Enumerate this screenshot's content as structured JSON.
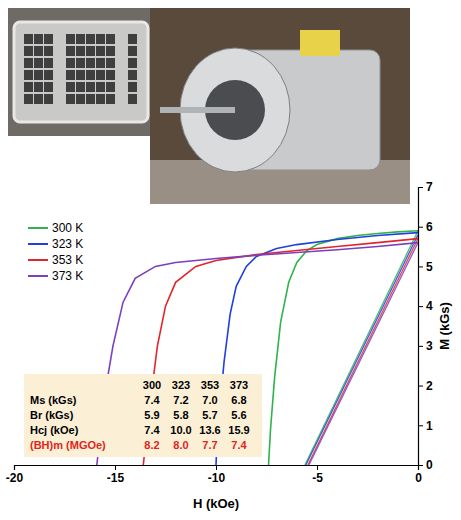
{
  "chart_data": {
    "type": "line",
    "x_label": "H (kOe)",
    "y_label": "M (kGs)",
    "xlim": [
      -20,
      0
    ],
    "ylim": [
      0,
      7
    ],
    "xticks": [
      -20,
      -15,
      -10,
      -5,
      0
    ],
    "yticks": [
      0,
      1,
      2,
      3,
      4,
      5,
      6,
      7
    ],
    "legend": "top-left",
    "series": [
      {
        "name": "300 K",
        "color": "#2fb34a",
        "x": [
          0,
          -1,
          -2,
          -3,
          -4,
          -5,
          -5.5,
          -6,
          -6.4,
          -6.8,
          -7.1,
          -7.3,
          -7.4
        ],
        "values": [
          5.9,
          5.87,
          5.83,
          5.78,
          5.7,
          5.55,
          5.4,
          5.1,
          4.6,
          3.6,
          2.2,
          0.9,
          0
        ],
        "b_x": [
          0,
          -5.6
        ],
        "b_values": [
          5.9,
          0
        ]
      },
      {
        "name": "323 K",
        "color": "#1f3fe0",
        "x": [
          0,
          -2,
          -4,
          -6,
          -7,
          -8,
          -8.5,
          -9,
          -9.3,
          -9.6,
          -9.8,
          -9.95,
          -10
        ],
        "values": [
          5.85,
          5.78,
          5.68,
          5.55,
          5.45,
          5.25,
          5.0,
          4.5,
          3.8,
          2.6,
          1.5,
          0.6,
          0
        ],
        "b_x": [
          0,
          -5.55
        ],
        "b_values": [
          5.8,
          0
        ]
      },
      {
        "name": "353 K",
        "color": "#e0262a",
        "x": [
          0,
          -2,
          -4,
          -6,
          -8,
          -10,
          -11,
          -12,
          -12.5,
          -12.9,
          -13.2,
          -13.45,
          -13.6
        ],
        "values": [
          5.7,
          5.6,
          5.5,
          5.4,
          5.3,
          5.15,
          5.0,
          4.6,
          4.0,
          3.0,
          1.8,
          0.7,
          0
        ],
        "b_x": [
          0,
          -5.45
        ],
        "b_values": [
          5.7,
          0
        ]
      },
      {
        "name": "373 K",
        "color": "#7b3fbf",
        "x": [
          0,
          -2,
          -4,
          -6,
          -8,
          -10,
          -12,
          -13,
          -14,
          -14.6,
          -15.1,
          -15.5,
          -15.75,
          -15.9
        ],
        "values": [
          5.6,
          5.5,
          5.42,
          5.35,
          5.28,
          5.2,
          5.1,
          5.0,
          4.7,
          4.1,
          3.0,
          1.8,
          0.7,
          0
        ],
        "b_x": [
          0,
          -5.4
        ],
        "b_values": [
          5.6,
          0
        ]
      }
    ],
    "table": {
      "columns": [
        300,
        323,
        353,
        373
      ],
      "rows": [
        {
          "label": "Ms (kGs)",
          "values": [
            7.4,
            7.2,
            7.0,
            6.8
          ],
          "value_labels": [
            "7.4",
            "7.2",
            "7.0",
            "6.8"
          ]
        },
        {
          "label": "Br (kGs)",
          "values": [
            5.9,
            5.8,
            5.7,
            5.6
          ]
        },
        {
          "label": "Hcj (kOe)",
          "values": [
            7.4,
            10.0,
            13.6,
            15.9
          ],
          "value_labels": [
            "7.4",
            "10.0",
            "13.6",
            "15.9"
          ]
        },
        {
          "label": "(BH)m (MGOe)",
          "values": [
            8.2,
            8.0,
            7.7,
            7.4
          ],
          "value_labels": [
            "8.2",
            "8.0",
            "7.7",
            "7.4"
          ],
          "color": "#e0261b"
        }
      ]
    }
  }
}
